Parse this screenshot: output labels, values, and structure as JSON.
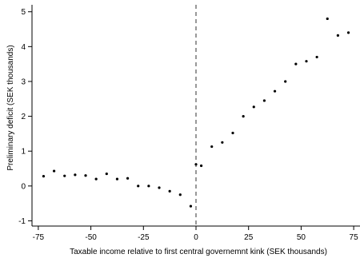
{
  "chart_data": {
    "type": "scatter",
    "title": "",
    "xlabel": "Taxable income relative to first central governemnt kink (SEK thousands)",
    "ylabel": "Preliminary deficit (SEK thousands)",
    "xlim": [
      -78,
      78
    ],
    "ylim": [
      -1.15,
      5.2
    ],
    "xticks": [
      -75,
      -50,
      -25,
      0,
      25,
      50,
      75
    ],
    "yticks": [
      -1,
      0,
      1,
      2,
      3,
      4,
      5
    ],
    "xtick_labels": [
      "-75",
      "-50",
      "-25",
      "0",
      "25",
      "50",
      "75"
    ],
    "ytick_labels": [
      "-1",
      "0",
      "1",
      "2",
      "3",
      "4",
      "5"
    ],
    "reference_line_x": 0,
    "grid": false,
    "legend": "none",
    "series": [
      {
        "x": [
          -72.5,
          -67.5,
          -62.5,
          -57.5,
          -52.5,
          -47.5,
          -42.5,
          -37.5,
          -32.5,
          -27.5,
          -22.5,
          -17.5,
          -12.5,
          -7.5,
          -2.5,
          0,
          2.5,
          7.5,
          12.5,
          17.5,
          22.5,
          27.5,
          32.5,
          37.5,
          42.5,
          47.5,
          52.5,
          57.5,
          62.5,
          67.5,
          72.5
        ],
        "y": [
          0.28,
          0.43,
          0.29,
          0.32,
          0.3,
          0.2,
          0.35,
          0.2,
          0.22,
          0.0,
          0.0,
          -0.05,
          -0.15,
          -0.25,
          -0.58,
          0.62,
          0.58,
          1.13,
          1.25,
          1.52,
          2.0,
          2.27,
          2.45,
          2.72,
          3.0,
          3.5,
          3.58,
          3.7,
          4.8,
          4.32,
          4.4
        ]
      }
    ]
  }
}
